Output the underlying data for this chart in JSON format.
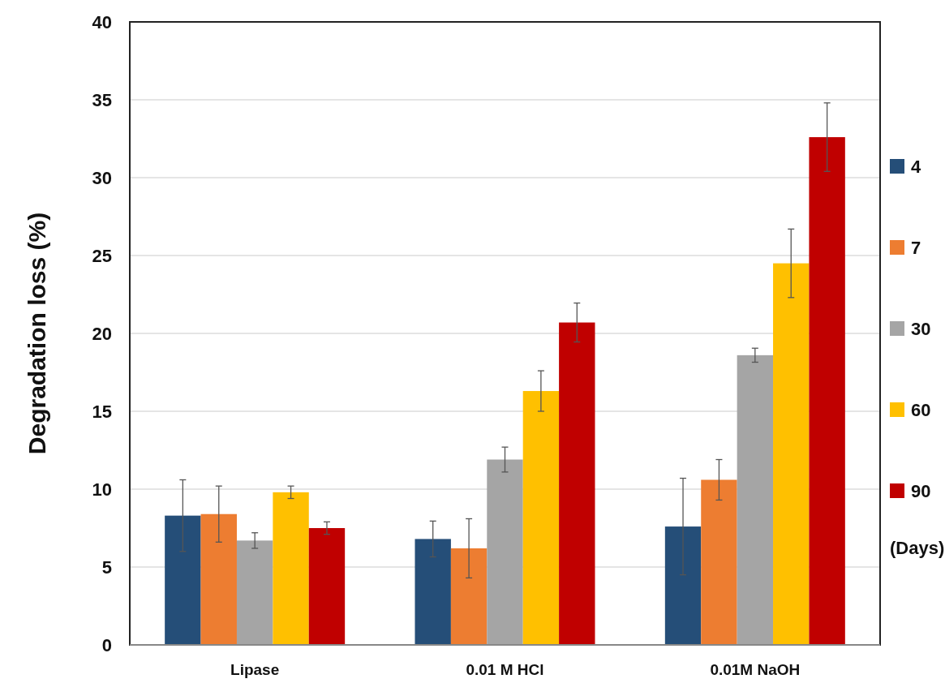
{
  "chart_data": {
    "type": "bar",
    "ylabel": "Degradation loss (%)",
    "legend_title": "(Days)",
    "categories": [
      "Lipase",
      "0.01 M HCl",
      "0.01M NaOH"
    ],
    "series": [
      {
        "name": "4",
        "color": "#254e78",
        "values": [
          8.3,
          6.8,
          7.6
        ],
        "errors": [
          2.3,
          1.15,
          3.1
        ]
      },
      {
        "name": "7",
        "color": "#ed7d31",
        "values": [
          8.4,
          6.2,
          10.6
        ],
        "errors": [
          1.8,
          1.9,
          1.3
        ]
      },
      {
        "name": "30",
        "color": "#a5a5a5",
        "values": [
          6.7,
          11.9,
          18.6
        ],
        "errors": [
          0.5,
          0.8,
          0.45
        ]
      },
      {
        "name": "60",
        "color": "#ffc000",
        "values": [
          9.8,
          16.3,
          24.5
        ],
        "errors": [
          0.4,
          1.3,
          2.2
        ]
      },
      {
        "name": "90",
        "color": "#c00000",
        "values": [
          7.5,
          20.7,
          32.6
        ],
        "errors": [
          0.4,
          1.25,
          2.2
        ]
      }
    ],
    "ylim": [
      0,
      40
    ],
    "yticks": [
      0,
      5,
      10,
      15,
      20,
      25,
      30,
      35,
      40
    ],
    "grid": "y",
    "legend": "right"
  }
}
